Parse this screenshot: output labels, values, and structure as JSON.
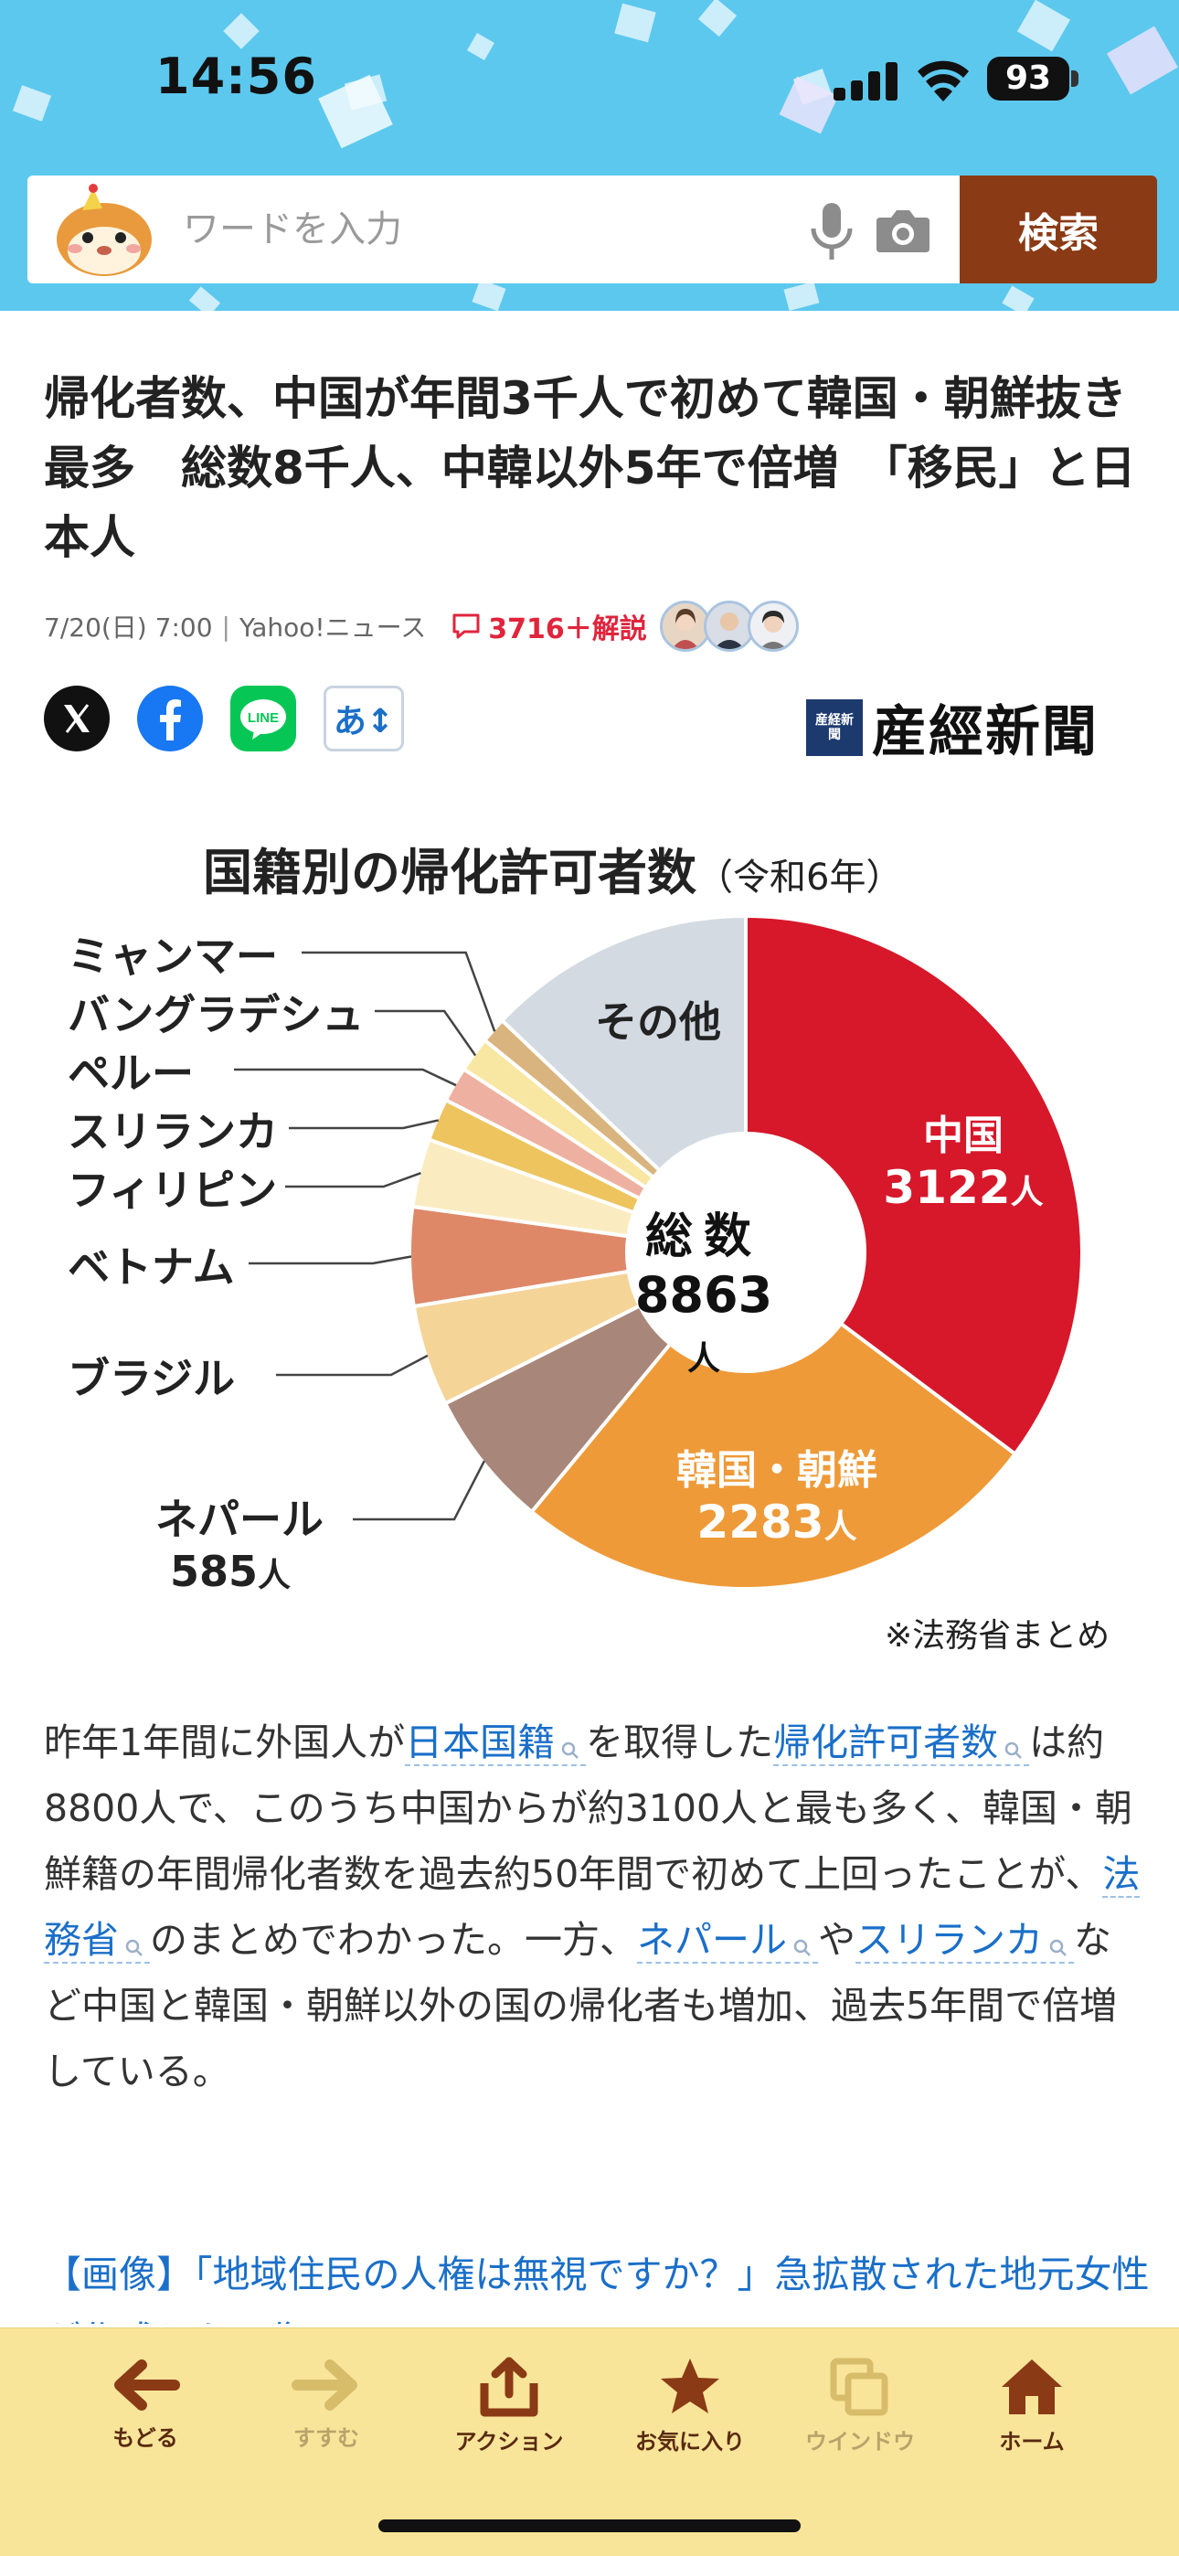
{
  "status_bar": {
    "time": "14:56",
    "battery": "93"
  },
  "search": {
    "placeholder": "ワードを入力",
    "button_label": "検索"
  },
  "article": {
    "title": "帰化者数、中国が年間3千人で初めて韓国・朝鮮抜き最多　総数8千人、中韓以外5年で倍増　「移民」と日本人",
    "date": "7/20(日) 7:00",
    "source": "Yahoo!ニュース",
    "comments": "3716＋解説",
    "publisher_mark": "産経新聞",
    "publisher": "産經新聞",
    "font_button": "あ↕"
  },
  "chart_data": {
    "type": "pie",
    "style": "donut",
    "title": "国籍別の帰化許可者数",
    "subtitle": "（令和6年）",
    "center_title": "総数",
    "center_value": "8863",
    "center_unit": "人",
    "total": 8863,
    "source_note": "※法務省まとめ",
    "slices": [
      {
        "name": "中国",
        "value": 3122,
        "value_label": "3122",
        "unit": "人",
        "color": "#d7172a"
      },
      {
        "name": "韓国・朝鮮",
        "value": 2283,
        "value_label": "2283",
        "unit": "人",
        "color": "#ee9a38"
      },
      {
        "name": "ネパール",
        "value": 585,
        "value_label": "585",
        "unit": "人",
        "color": "#a8877a"
      },
      {
        "name": "ブラジル",
        "value": 430,
        "color": "#f5d498"
      },
      {
        "name": "ベトナム",
        "value": 420,
        "color": "#de8868"
      },
      {
        "name": "フィリピン",
        "value": 290,
        "color": "#faecc0"
      },
      {
        "name": "スリランカ",
        "value": 180,
        "color": "#edc45e"
      },
      {
        "name": "ペルー",
        "value": 150,
        "color": "#eeb0a0"
      },
      {
        "name": "バングラデシュ",
        "value": 150,
        "color": "#f8e7a2"
      },
      {
        "name": "ミャンマー",
        "value": 110,
        "color": "#d9b47e"
      },
      {
        "name": "その他",
        "value": 1143,
        "color": "#d3dae2"
      }
    ]
  },
  "body": {
    "t1": "昨年1年間に外国人が",
    "k1": "日本国籍",
    "t2": "を取得した",
    "k2": "帰化許可者数",
    "t3": "は約8800人で、このうち中国からが約3100人と最も多く、韓国・朝鮮籍の年間帰化者数を過去約50年間で初めて上回ったことが、",
    "k3": "法務省",
    "t4": "のまとめでわかった。一方、",
    "k4": "ネパール",
    "t5": "や",
    "k5": "スリランカ",
    "t6": "など中国と韓国・朝鮮以外の国の帰化者も増加、過去5年間で倍増している。"
  },
  "related_link": "【画像】「地域住民の人権は無視ですか？」急拡散された地元女性が作成した画像",
  "toolbar": {
    "back": "もどる",
    "forward": "すすむ",
    "action": "アクション",
    "favorite": "お気に入り",
    "window": "ウインドウ",
    "home": "ホーム"
  }
}
